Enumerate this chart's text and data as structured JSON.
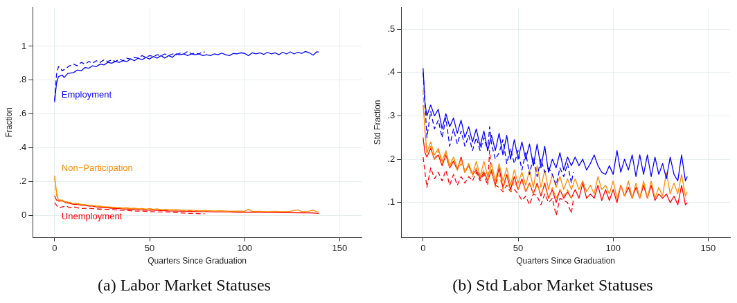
{
  "chart_data": [
    {
      "type": "line",
      "title": "(a) Labor Market Statuses",
      "xlabel": "Quarters Since Graduation",
      "ylabel": "Fraction",
      "xlim": [
        -11.5,
        161.5
      ],
      "xticks": [
        0,
        50,
        100,
        150
      ],
      "ylim": [
        -0.13,
        1.23
      ],
      "yticks": [
        0,
        {
          "value": 0.2,
          "label": ".2"
        },
        {
          "value": 0.4,
          "label": ".4"
        },
        {
          "value": 0.6,
          "label": ".6"
        },
        {
          "value": 0.8,
          "label": ".8"
        },
        1
      ],
      "grid": true,
      "legend": false,
      "marker": "none",
      "series": [
        {
          "name": "Employment",
          "color": "#0000ff",
          "line_style": "solid",
          "x": [
            0,
            1,
            2,
            4,
            5,
            7,
            10,
            12,
            14,
            16,
            18,
            20,
            22,
            24,
            26,
            28,
            30,
            32,
            34,
            36,
            38,
            40,
            42,
            44,
            46,
            48,
            50,
            52,
            54,
            56,
            58,
            60,
            62,
            64,
            66,
            68,
            70,
            72,
            74,
            76,
            78,
            80,
            82,
            84,
            86,
            88,
            90,
            92,
            94,
            96,
            98,
            100,
            102,
            104,
            106,
            108,
            110,
            112,
            114,
            116,
            118,
            120,
            122,
            124,
            126,
            128,
            130,
            132,
            134,
            136,
            138,
            139
          ],
          "values": [
            0.67,
            0.78,
            0.82,
            0.83,
            0.815,
            0.84,
            0.845,
            0.86,
            0.855,
            0.875,
            0.87,
            0.885,
            0.88,
            0.895,
            0.89,
            0.905,
            0.9,
            0.91,
            0.905,
            0.915,
            0.91,
            0.925,
            0.915,
            0.93,
            0.92,
            0.935,
            0.925,
            0.94,
            0.93,
            0.945,
            0.93,
            0.945,
            0.935,
            0.955,
            0.95,
            0.955,
            0.945,
            0.955,
            0.95,
            0.955,
            0.945,
            0.95,
            0.945,
            0.955,
            0.95,
            0.96,
            0.95,
            0.945,
            0.958,
            0.955,
            0.962,
            0.958,
            0.945,
            0.962,
            0.955,
            0.962,
            0.952,
            0.965,
            0.955,
            0.962,
            0.95,
            0.965,
            0.955,
            0.967,
            0.955,
            0.965,
            0.958,
            0.97,
            0.962,
            0.948,
            0.968,
            0.966
          ]
        },
        {
          "color": "#0000ff",
          "line_style": "dashed",
          "x": [
            0,
            1,
            2,
            3,
            4,
            6,
            8,
            10,
            12,
            14,
            16,
            18,
            20,
            22,
            24,
            26,
            28,
            30,
            32,
            34,
            36,
            38,
            40,
            42,
            44,
            46,
            48,
            50,
            52,
            54,
            56,
            58,
            60,
            62,
            64,
            66,
            68,
            70,
            72,
            74,
            76,
            78,
            79
          ],
          "values": [
            0.68,
            0.83,
            0.88,
            0.875,
            0.855,
            0.87,
            0.885,
            0.895,
            0.885,
            0.905,
            0.895,
            0.91,
            0.9,
            0.915,
            0.905,
            0.92,
            0.91,
            0.92,
            0.91,
            0.925,
            0.915,
            0.93,
            0.925,
            0.935,
            0.93,
            0.945,
            0.935,
            0.945,
            0.94,
            0.95,
            0.945,
            0.955,
            0.945,
            0.955,
            0.95,
            0.96,
            0.955,
            0.97,
            0.955,
            0.96,
            0.955,
            0.97,
            0.965
          ]
        },
        {
          "name": "Non−Participation",
          "color": "#ff8c00",
          "line_style": "solid",
          "x": [
            0,
            1,
            2,
            4,
            6,
            8,
            10,
            12,
            14,
            16,
            18,
            20,
            22,
            24,
            26,
            28,
            30,
            32,
            34,
            36,
            38,
            40,
            42,
            44,
            46,
            48,
            50,
            52,
            54,
            56,
            58,
            60,
            64,
            68,
            72,
            76,
            80,
            84,
            88,
            92,
            96,
            100,
            102,
            104,
            108,
            112,
            116,
            120,
            124,
            128,
            130,
            134,
            136,
            138,
            139
          ],
          "values": [
            0.235,
            0.14,
            0.09,
            0.085,
            0.08,
            0.075,
            0.07,
            0.07,
            0.065,
            0.062,
            0.06,
            0.058,
            0.055,
            0.055,
            0.05,
            0.05,
            0.048,
            0.045,
            0.045,
            0.042,
            0.045,
            0.04,
            0.042,
            0.038,
            0.04,
            0.035,
            0.04,
            0.035,
            0.038,
            0.032,
            0.035,
            0.032,
            0.033,
            0.03,
            0.03,
            0.028,
            0.028,
            0.026,
            0.027,
            0.024,
            0.025,
            0.024,
            0.035,
            0.023,
            0.024,
            0.022,
            0.024,
            0.022,
            0.024,
            0.032,
            0.022,
            0.025,
            0.03,
            0.022,
            0.02
          ]
        },
        {
          "color": "#ff8c00",
          "line_style": "dashed",
          "x": [
            0,
            1,
            2,
            4,
            6,
            8,
            10,
            14,
            18,
            22,
            26,
            30,
            34,
            38,
            42,
            46,
            50,
            54,
            58,
            62,
            66,
            70,
            74,
            79
          ],
          "values": [
            0.22,
            0.12,
            0.09,
            0.09,
            0.08,
            0.075,
            0.07,
            0.065,
            0.06,
            0.055,
            0.05,
            0.048,
            0.045,
            0.04,
            0.04,
            0.038,
            0.035,
            0.035,
            0.033,
            0.03,
            0.03,
            0.028,
            0.028,
            0.025
          ]
        },
        {
          "name": "Unemployment",
          "color": "#ff0000",
          "line_style": "solid",
          "x": [
            0,
            1,
            2,
            4,
            6,
            8,
            10,
            12,
            14,
            16,
            18,
            20,
            22,
            24,
            26,
            28,
            30,
            32,
            34,
            36,
            40,
            44,
            48,
            52,
            56,
            60,
            64,
            68,
            72,
            76,
            80,
            84,
            88,
            92,
            96,
            100,
            104,
            108,
            112,
            116,
            120,
            124,
            128,
            132,
            136,
            139
          ],
          "values": [
            0.115,
            0.09,
            0.085,
            0.085,
            0.075,
            0.07,
            0.065,
            0.065,
            0.06,
            0.058,
            0.055,
            0.055,
            0.05,
            0.048,
            0.045,
            0.045,
            0.042,
            0.04,
            0.04,
            0.038,
            0.035,
            0.033,
            0.03,
            0.03,
            0.028,
            0.026,
            0.025,
            0.024,
            0.023,
            0.022,
            0.022,
            0.02,
            0.02,
            0.02,
            0.018,
            0.018,
            0.019,
            0.018,
            0.017,
            0.017,
            0.016,
            0.016,
            0.015,
            0.015,
            0.014,
            0.012
          ]
        },
        {
          "color": "#ff0000",
          "line_style": "dashed",
          "x": [
            0,
            1,
            2,
            4,
            6,
            8,
            10,
            14,
            18,
            22,
            26,
            30,
            34,
            38,
            42,
            46,
            50,
            54,
            58,
            62,
            66,
            70,
            74,
            78,
            79
          ],
          "values": [
            0.075,
            0.06,
            0.045,
            0.05,
            0.055,
            0.045,
            0.05,
            0.04,
            0.042,
            0.038,
            0.035,
            0.035,
            0.03,
            0.03,
            0.025,
            0.025,
            0.022,
            0.02,
            0.02,
            0.018,
            0.015,
            0.012,
            0.012,
            0.008,
            0.01
          ]
        }
      ]
    },
    {
      "type": "line",
      "title": "(b) Std Labor Market Statuses",
      "xlabel": "Quarters Since Graduation",
      "ylabel": "Std Fraction",
      "xlim": [
        -11.5,
        161.5
      ],
      "xticks": [
        0,
        50,
        100,
        150
      ],
      "ylim": [
        0.02,
        0.55
      ],
      "yticks": [
        {
          "value": 0.1,
          "label": ".1"
        },
        {
          "value": 0.2,
          "label": ".2"
        },
        {
          "value": 0.3,
          "label": ".3"
        },
        {
          "value": 0.4,
          "label": ".4"
        },
        {
          "value": 0.5,
          "label": ".5"
        }
      ],
      "grid": true,
      "legend": false,
      "marker": "none",
      "series": [
        {
          "color": "#0000ff",
          "line_style": "solid",
          "x": [
            0,
            1,
            2,
            4,
            6,
            8,
            10,
            12,
            14,
            16,
            18,
            20,
            22,
            24,
            26,
            28,
            30,
            32,
            34,
            36,
            38,
            40,
            42,
            44,
            46,
            48,
            50,
            52,
            54,
            56,
            58,
            60,
            62,
            64,
            66,
            68,
            70,
            72,
            74,
            76,
            78,
            80,
            82,
            84,
            86,
            88,
            90,
            92,
            94,
            96,
            98,
            100,
            102,
            104,
            106,
            108,
            110,
            112,
            114,
            116,
            118,
            120,
            122,
            124,
            126,
            128,
            130,
            132,
            134,
            136,
            138,
            139
          ],
          "values": [
            0.41,
            0.33,
            0.3,
            0.325,
            0.3,
            0.315,
            0.27,
            0.305,
            0.275,
            0.295,
            0.26,
            0.29,
            0.25,
            0.275,
            0.24,
            0.27,
            0.23,
            0.265,
            0.22,
            0.255,
            0.22,
            0.26,
            0.21,
            0.255,
            0.2,
            0.245,
            0.2,
            0.24,
            0.2,
            0.235,
            0.185,
            0.235,
            0.18,
            0.23,
            0.17,
            0.2,
            0.18,
            0.215,
            0.175,
            0.205,
            0.185,
            0.205,
            0.185,
            0.2,
            0.175,
            0.19,
            0.21,
            0.185,
            0.17,
            0.165,
            0.185,
            0.165,
            0.22,
            0.17,
            0.2,
            0.175,
            0.21,
            0.16,
            0.21,
            0.165,
            0.21,
            0.16,
            0.205,
            0.165,
            0.19,
            0.155,
            0.205,
            0.165,
            0.15,
            0.21,
            0.15,
            0.16
          ]
        },
        {
          "color": "#0000ff",
          "line_style": "dashed",
          "x": [
            0,
            1,
            2,
            4,
            6,
            8,
            10,
            12,
            14,
            16,
            18,
            20,
            22,
            24,
            26,
            28,
            30,
            32,
            34,
            35,
            36,
            38,
            40,
            42,
            44,
            46,
            48,
            50,
            52,
            54,
            56,
            58,
            60,
            62,
            64,
            66,
            68,
            70,
            72,
            74,
            76,
            78,
            79
          ],
          "values": [
            0.4,
            0.33,
            0.25,
            0.31,
            0.27,
            0.29,
            0.25,
            0.295,
            0.23,
            0.27,
            0.235,
            0.265,
            0.23,
            0.255,
            0.22,
            0.25,
            0.22,
            0.25,
            0.22,
            0.275,
            0.235,
            0.2,
            0.215,
            0.245,
            0.19,
            0.225,
            0.19,
            0.22,
            0.175,
            0.215,
            0.165,
            0.205,
            0.16,
            0.2,
            0.17,
            0.18,
            0.165,
            0.14,
            0.18,
            0.16,
            0.19,
            0.145,
            0.17
          ]
        },
        {
          "color": "#ff8c00",
          "line_style": "solid",
          "x": [
            0,
            1,
            2,
            4,
            6,
            8,
            10,
            12,
            14,
            16,
            18,
            20,
            22,
            24,
            26,
            28,
            30,
            32,
            34,
            36,
            38,
            40,
            42,
            44,
            46,
            48,
            50,
            52,
            54,
            56,
            58,
            60,
            62,
            64,
            66,
            68,
            70,
            72,
            74,
            76,
            78,
            80,
            82,
            84,
            86,
            88,
            90,
            92,
            94,
            96,
            98,
            100,
            102,
            104,
            106,
            108,
            110,
            112,
            114,
            116,
            118,
            120,
            122,
            124,
            126,
            128,
            130,
            132,
            134,
            136,
            138,
            139
          ],
          "values": [
            0.325,
            0.27,
            0.215,
            0.24,
            0.21,
            0.225,
            0.195,
            0.22,
            0.185,
            0.205,
            0.18,
            0.2,
            0.17,
            0.19,
            0.165,
            0.195,
            0.16,
            0.195,
            0.16,
            0.19,
            0.15,
            0.19,
            0.15,
            0.18,
            0.14,
            0.175,
            0.145,
            0.17,
            0.14,
            0.175,
            0.135,
            0.185,
            0.135,
            0.175,
            0.13,
            0.165,
            0.135,
            0.16,
            0.13,
            0.155,
            0.13,
            0.155,
            0.13,
            0.15,
            0.125,
            0.14,
            0.12,
            0.16,
            0.13,
            0.14,
            0.12,
            0.15,
            0.11,
            0.14,
            0.115,
            0.15,
            0.11,
            0.145,
            0.11,
            0.15,
            0.11,
            0.15,
            0.11,
            0.135,
            0.115,
            0.17,
            0.12,
            0.145,
            0.12,
            0.165,
            0.115,
            0.125
          ]
        },
        {
          "color": "#ff8c00",
          "line_style": "dashed",
          "x": [
            0,
            1,
            2,
            4,
            6,
            8,
            10,
            12,
            14,
            16,
            18,
            20,
            22,
            24,
            26,
            28,
            30,
            32,
            34,
            36,
            38,
            40,
            42,
            44,
            46,
            48,
            50,
            52,
            54,
            56,
            58,
            60,
            62,
            64,
            66,
            68,
            70,
            72,
            74,
            76,
            78,
            79
          ],
          "values": [
            0.36,
            0.26,
            0.215,
            0.23,
            0.2,
            0.22,
            0.19,
            0.215,
            0.18,
            0.2,
            0.175,
            0.19,
            0.17,
            0.185,
            0.16,
            0.18,
            0.16,
            0.175,
            0.15,
            0.18,
            0.135,
            0.165,
            0.13,
            0.16,
            0.125,
            0.15,
            0.13,
            0.15,
            0.125,
            0.145,
            0.12,
            0.14,
            0.12,
            0.14,
            0.11,
            0.135,
            0.11,
            0.13,
            0.115,
            0.13,
            0.11,
            0.12
          ]
        },
        {
          "color": "#ff0000",
          "line_style": "solid",
          "x": [
            0,
            1,
            2,
            4,
            6,
            8,
            10,
            12,
            14,
            16,
            18,
            20,
            22,
            24,
            26,
            28,
            30,
            32,
            34,
            36,
            38,
            40,
            42,
            44,
            46,
            48,
            50,
            52,
            54,
            56,
            58,
            60,
            62,
            64,
            66,
            68,
            70,
            72,
            74,
            76,
            78,
            80,
            82,
            84,
            86,
            88,
            90,
            92,
            94,
            96,
            98,
            100,
            102,
            104,
            106,
            108,
            110,
            112,
            114,
            116,
            118,
            120,
            122,
            124,
            126,
            128,
            130,
            132,
            134,
            136,
            138,
            139
          ],
          "values": [
            0.25,
            0.215,
            0.205,
            0.225,
            0.2,
            0.21,
            0.185,
            0.21,
            0.18,
            0.195,
            0.175,
            0.205,
            0.17,
            0.185,
            0.165,
            0.175,
            0.155,
            0.17,
            0.15,
            0.175,
            0.14,
            0.18,
            0.135,
            0.165,
            0.13,
            0.16,
            0.13,
            0.155,
            0.125,
            0.145,
            0.12,
            0.145,
            0.115,
            0.145,
            0.11,
            0.13,
            0.1,
            0.13,
            0.11,
            0.125,
            0.11,
            0.13,
            0.11,
            0.145,
            0.11,
            0.12,
            0.11,
            0.14,
            0.105,
            0.13,
            0.105,
            0.13,
            0.1,
            0.14,
            0.115,
            0.135,
            0.11,
            0.135,
            0.11,
            0.14,
            0.11,
            0.14,
            0.105,
            0.12,
            0.11,
            0.12,
            0.1,
            0.115,
            0.095,
            0.14,
            0.095,
            0.1
          ]
        },
        {
          "color": "#ff0000",
          "line_style": "dashed",
          "x": [
            0,
            1,
            2,
            4,
            6,
            8,
            10,
            12,
            14,
            16,
            18,
            20,
            22,
            24,
            26,
            28,
            30,
            32,
            34,
            35,
            36,
            38,
            40,
            42,
            44,
            46,
            48,
            50,
            52,
            54,
            56,
            58,
            60,
            62,
            64,
            66,
            68,
            70,
            72,
            74,
            76,
            78,
            79
          ],
          "values": [
            0.205,
            0.17,
            0.135,
            0.18,
            0.155,
            0.17,
            0.15,
            0.175,
            0.14,
            0.165,
            0.14,
            0.16,
            0.145,
            0.16,
            0.15,
            0.17,
            0.15,
            0.165,
            0.14,
            0.22,
            0.17,
            0.14,
            0.135,
            0.125,
            0.14,
            0.125,
            0.13,
            0.12,
            0.105,
            0.115,
            0.095,
            0.12,
            0.115,
            0.095,
            0.12,
            0.1,
            0.11,
            0.07,
            0.11,
            0.105,
            0.1,
            0.075,
            0.105
          ]
        }
      ]
    }
  ]
}
